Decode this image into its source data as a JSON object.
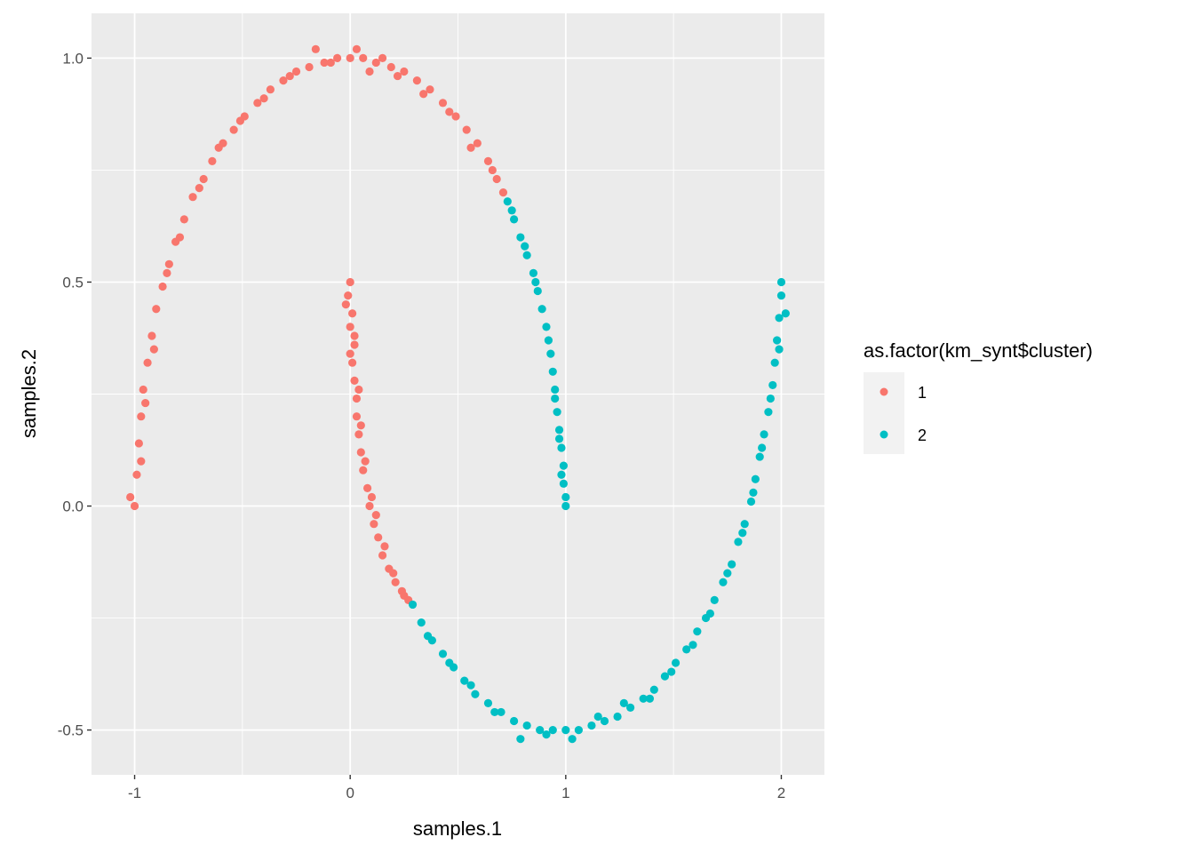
{
  "chart_data": {
    "type": "scatter",
    "xlabel": "samples.1",
    "ylabel": "samples.2",
    "xlim": [
      -1.2,
      2.2
    ],
    "ylim": [
      -0.6,
      1.1
    ],
    "x_ticks": [
      -1,
      0,
      1,
      2
    ],
    "x_tick_labels": [
      "-1",
      "0",
      "1",
      "2"
    ],
    "y_ticks": [
      -0.5,
      0.0,
      0.5,
      1.0
    ],
    "y_tick_labels": [
      "-0.5",
      "0.0",
      "0.5",
      "1.0"
    ],
    "grid": true,
    "panel_background": "#ebebeb",
    "legend": {
      "title": "as.factor(km_synt$cluster)",
      "placement": "right",
      "entries": [
        {
          "label": "1",
          "color": "#f8766d"
        },
        {
          "label": "2",
          "color": "#00bfc4"
        }
      ]
    },
    "series": [
      {
        "name": "1",
        "color": "#f8766d",
        "points": [
          [
            -1.0,
            0.0
          ],
          [
            -0.99,
            0.07
          ],
          [
            -0.98,
            0.14
          ],
          [
            -0.97,
            0.2
          ],
          [
            -0.96,
            0.26
          ],
          [
            -0.94,
            0.32
          ],
          [
            -0.92,
            0.38
          ],
          [
            -0.9,
            0.44
          ],
          [
            -0.87,
            0.49
          ],
          [
            -0.84,
            0.54
          ],
          [
            -0.81,
            0.59
          ],
          [
            -0.77,
            0.64
          ],
          [
            -0.73,
            0.69
          ],
          [
            -0.68,
            0.73
          ],
          [
            -0.64,
            0.77
          ],
          [
            -0.59,
            0.81
          ],
          [
            -0.54,
            0.84
          ],
          [
            -0.49,
            0.87
          ],
          [
            -0.43,
            0.9
          ],
          [
            -0.37,
            0.93
          ],
          [
            -0.31,
            0.95
          ],
          [
            -0.25,
            0.97
          ],
          [
            -0.19,
            0.98
          ],
          [
            -0.12,
            0.99
          ],
          [
            -0.06,
            1.0
          ],
          [
            0.0,
            1.0
          ],
          [
            0.06,
            1.0
          ],
          [
            0.12,
            0.99
          ],
          [
            0.19,
            0.98
          ],
          [
            0.25,
            0.97
          ],
          [
            0.31,
            0.95
          ],
          [
            0.37,
            0.93
          ],
          [
            0.43,
            0.9
          ],
          [
            0.49,
            0.87
          ],
          [
            0.54,
            0.84
          ],
          [
            0.59,
            0.81
          ],
          [
            0.64,
            0.77
          ],
          [
            0.68,
            0.73
          ],
          [
            0.71,
            0.7
          ],
          [
            -1.02,
            0.02
          ],
          [
            -0.97,
            0.1
          ],
          [
            -0.95,
            0.23
          ],
          [
            -0.91,
            0.35
          ],
          [
            -0.85,
            0.52
          ],
          [
            -0.79,
            0.6
          ],
          [
            -0.7,
            0.71
          ],
          [
            -0.61,
            0.8
          ],
          [
            -0.51,
            0.86
          ],
          [
            -0.4,
            0.91
          ],
          [
            -0.28,
            0.96
          ],
          [
            -0.16,
            1.02
          ],
          [
            -0.09,
            0.99
          ],
          [
            0.03,
            1.02
          ],
          [
            0.09,
            0.97
          ],
          [
            0.15,
            1.0
          ],
          [
            0.22,
            0.96
          ],
          [
            0.34,
            0.92
          ],
          [
            0.46,
            0.88
          ],
          [
            0.56,
            0.8
          ],
          [
            0.66,
            0.75
          ],
          [
            0.0,
            0.5
          ],
          [
            -0.01,
            0.47
          ],
          [
            0.01,
            0.43
          ],
          [
            0.0,
            0.4
          ],
          [
            0.02,
            0.36
          ],
          [
            0.01,
            0.32
          ],
          [
            0.02,
            0.28
          ],
          [
            0.03,
            0.24
          ],
          [
            0.03,
            0.2
          ],
          [
            0.04,
            0.16
          ],
          [
            0.05,
            0.12
          ],
          [
            0.06,
            0.08
          ],
          [
            0.08,
            0.04
          ],
          [
            0.09,
            0.0
          ],
          [
            0.11,
            -0.04
          ],
          [
            0.13,
            -0.07
          ],
          [
            0.15,
            -0.11
          ],
          [
            0.18,
            -0.14
          ],
          [
            0.21,
            -0.17
          ],
          [
            0.24,
            -0.19
          ],
          [
            0.27,
            -0.21
          ],
          [
            -0.02,
            0.45
          ],
          [
            0.02,
            0.38
          ],
          [
            0.0,
            0.34
          ],
          [
            0.04,
            0.26
          ],
          [
            0.05,
            0.18
          ],
          [
            0.07,
            0.1
          ],
          [
            0.1,
            0.02
          ],
          [
            0.12,
            -0.02
          ],
          [
            0.16,
            -0.09
          ],
          [
            0.2,
            -0.15
          ],
          [
            0.25,
            -0.2
          ]
        ]
      },
      {
        "name": "2",
        "color": "#00bfc4",
        "points": [
          [
            0.73,
            0.68
          ],
          [
            0.76,
            0.64
          ],
          [
            0.79,
            0.6
          ],
          [
            0.82,
            0.56
          ],
          [
            0.85,
            0.52
          ],
          [
            0.87,
            0.48
          ],
          [
            0.89,
            0.44
          ],
          [
            0.91,
            0.4
          ],
          [
            0.93,
            0.34
          ],
          [
            0.94,
            0.3
          ],
          [
            0.95,
            0.26
          ],
          [
            0.96,
            0.21
          ],
          [
            0.97,
            0.17
          ],
          [
            0.98,
            0.13
          ],
          [
            0.99,
            0.09
          ],
          [
            0.99,
            0.05
          ],
          [
            1.0,
            0.02
          ],
          [
            1.0,
            0.0
          ],
          [
            0.75,
            0.66
          ],
          [
            0.81,
            0.58
          ],
          [
            0.86,
            0.5
          ],
          [
            0.92,
            0.37
          ],
          [
            0.95,
            0.24
          ],
          [
            0.97,
            0.15
          ],
          [
            0.98,
            0.07
          ],
          [
            0.29,
            -0.22
          ],
          [
            0.33,
            -0.26
          ],
          [
            0.38,
            -0.3
          ],
          [
            0.43,
            -0.33
          ],
          [
            0.48,
            -0.36
          ],
          [
            0.53,
            -0.39
          ],
          [
            0.58,
            -0.42
          ],
          [
            0.64,
            -0.44
          ],
          [
            0.7,
            -0.46
          ],
          [
            0.76,
            -0.48
          ],
          [
            0.82,
            -0.49
          ],
          [
            0.88,
            -0.5
          ],
          [
            0.94,
            -0.5
          ],
          [
            1.0,
            -0.5
          ],
          [
            1.06,
            -0.5
          ],
          [
            1.12,
            -0.49
          ],
          [
            1.18,
            -0.48
          ],
          [
            1.24,
            -0.47
          ],
          [
            1.3,
            -0.45
          ],
          [
            1.36,
            -0.43
          ],
          [
            1.41,
            -0.41
          ],
          [
            1.46,
            -0.38
          ],
          [
            1.51,
            -0.35
          ],
          [
            1.56,
            -0.32
          ],
          [
            1.61,
            -0.28
          ],
          [
            1.65,
            -0.25
          ],
          [
            1.69,
            -0.21
          ],
          [
            1.73,
            -0.17
          ],
          [
            1.77,
            -0.13
          ],
          [
            1.8,
            -0.08
          ],
          [
            1.83,
            -0.04
          ],
          [
            1.86,
            0.01
          ],
          [
            1.88,
            0.06
          ],
          [
            1.9,
            0.11
          ],
          [
            1.92,
            0.16
          ],
          [
            1.94,
            0.21
          ],
          [
            1.96,
            0.27
          ],
          [
            1.97,
            0.32
          ],
          [
            1.98,
            0.37
          ],
          [
            1.99,
            0.42
          ],
          [
            2.0,
            0.47
          ],
          [
            2.0,
            0.5
          ],
          [
            0.36,
            -0.29
          ],
          [
            0.46,
            -0.35
          ],
          [
            0.56,
            -0.4
          ],
          [
            0.67,
            -0.46
          ],
          [
            0.79,
            -0.52
          ],
          [
            0.91,
            -0.51
          ],
          [
            1.03,
            -0.52
          ],
          [
            1.15,
            -0.47
          ],
          [
            1.27,
            -0.44
          ],
          [
            1.39,
            -0.43
          ],
          [
            1.49,
            -0.37
          ],
          [
            1.59,
            -0.31
          ],
          [
            1.67,
            -0.24
          ],
          [
            1.75,
            -0.15
          ],
          [
            1.82,
            -0.06
          ],
          [
            1.87,
            0.03
          ],
          [
            1.91,
            0.13
          ],
          [
            1.95,
            0.24
          ],
          [
            1.99,
            0.35
          ],
          [
            2.02,
            0.43
          ]
        ]
      }
    ]
  }
}
